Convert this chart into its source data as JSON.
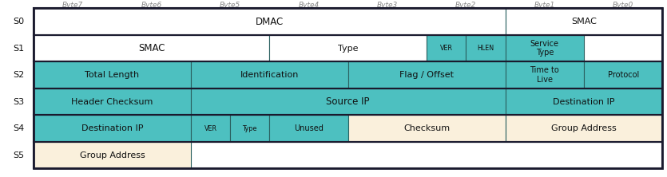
{
  "col_labels": [
    "Byte7",
    "Byte6",
    "Byte5",
    "Byte4",
    "Byte3",
    "Byte2",
    "Byte1",
    "Byte0"
  ],
  "row_labels": [
    "S0",
    "S1",
    "S2",
    "S3",
    "S4",
    "S5"
  ],
  "teal": "#4DC0C0",
  "cream": "#FAF0DC",
  "white": "#FFFFFF",
  "border_dark": "#1A1A2E",
  "border_inner": "#2A6060",
  "text_color": "#111111",
  "header_text_color": "#888888",
  "rows": [
    [
      {
        "label": "DMAC",
        "span": 6,
        "color": "white"
      },
      {
        "label": "SMAC",
        "span": 2,
        "color": "white"
      }
    ],
    [
      {
        "label": "SMAC",
        "span": 3,
        "color": "white"
      },
      {
        "label": "Type",
        "span": 2,
        "color": "white"
      },
      {
        "label": "VER",
        "span": 0.5,
        "color": "teal"
      },
      {
        "label": "HLEN",
        "span": 0.5,
        "color": "teal"
      },
      {
        "label": "Service\nType",
        "span": 1,
        "color": "teal"
      }
    ],
    [
      {
        "label": "Total Length",
        "span": 2,
        "color": "teal"
      },
      {
        "label": "Identification",
        "span": 2,
        "color": "teal"
      },
      {
        "label": "Flag / Offset",
        "span": 2,
        "color": "teal"
      },
      {
        "label": "Time to\nLive",
        "span": 1,
        "color": "teal"
      },
      {
        "label": "Protocol",
        "span": 1,
        "color": "teal"
      }
    ],
    [
      {
        "label": "Header Checksum",
        "span": 2,
        "color": "teal"
      },
      {
        "label": "Source IP",
        "span": 4,
        "color": "teal"
      },
      {
        "label": "Destination IP",
        "span": 2,
        "color": "teal"
      }
    ],
    [
      {
        "label": "Destination IP",
        "span": 2,
        "color": "teal"
      },
      {
        "label": "VER",
        "span": 0.5,
        "color": "teal"
      },
      {
        "label": "Type",
        "span": 0.5,
        "color": "teal"
      },
      {
        "label": "Unused",
        "span": 1,
        "color": "teal"
      },
      {
        "label": "Checksum",
        "span": 2,
        "color": "cream"
      },
      {
        "label": "Group Address",
        "span": 2,
        "color": "cream"
      }
    ],
    [
      {
        "label": "Group Address",
        "span": 2,
        "color": "cream"
      }
    ]
  ]
}
